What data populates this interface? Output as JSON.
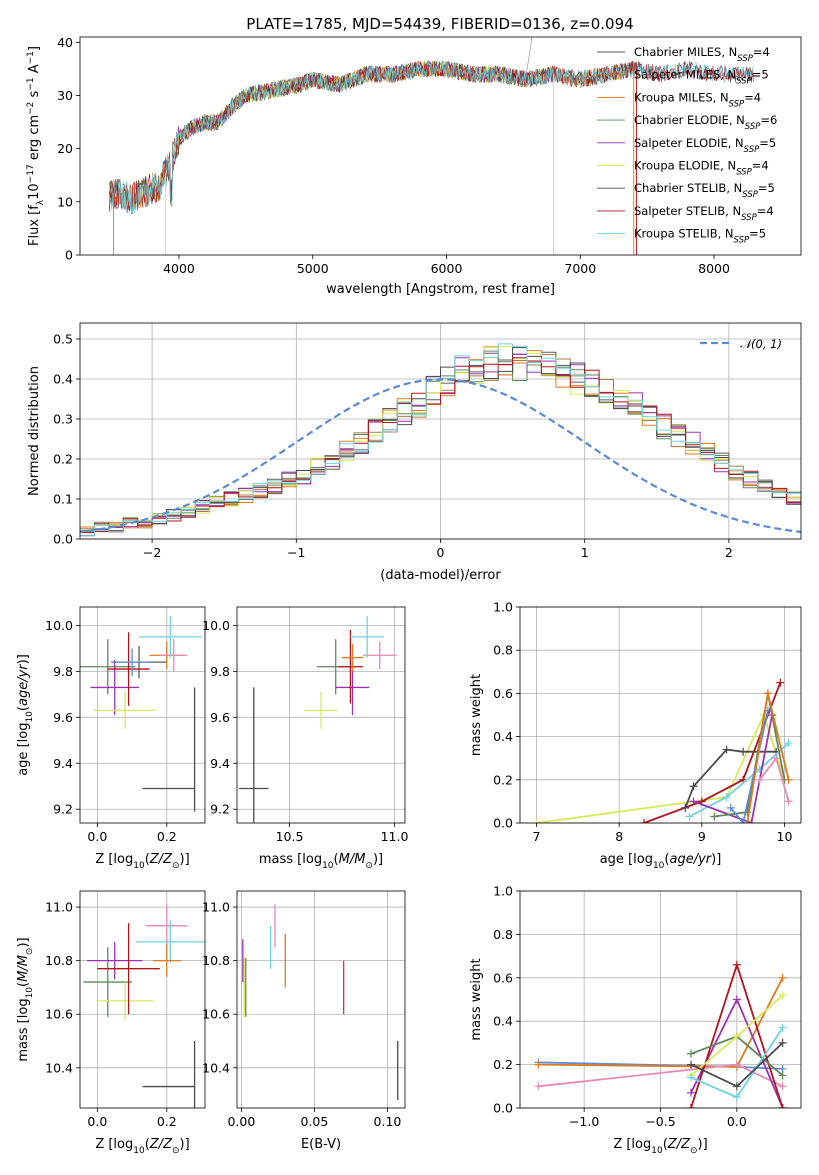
{
  "figure": {
    "title": "PLATE=1785, MJD=54439, FIBERID=0136, z=0.094"
  },
  "colors": {
    "Chabrier MILES": "#5b5b5b",
    "Salpeter MILES": "#a47c48",
    "Kroupa MILES": "#e07b1b",
    "Chabrier ELODIE": "#5e8a5a",
    "Salpeter ELODIE": "#9a32b5",
    "Kroupa ELODIE": "#d8e85a",
    "Chabrier STELIB": "#4a4a4a",
    "Salpeter STELIB": "#b0141d",
    "Kroupa STELIB": "#6fd3de",
    "normal": "#5b8bd6",
    "pink": "#e68ab5",
    "blue": "#5b8bd6",
    "red": "#d9363a",
    "orange": "#e07b1b"
  },
  "chart_data": [
    {
      "id": "spectrum",
      "type": "line",
      "title": "PLATE=1785, MJD=54439, FIBERID=0136, z=0.094",
      "xlabel": "wavelength [Angstrom, rest frame]",
      "ylabel": "Flux [f_λ10^-17 erg cm^-2 s^-1 A^-1]",
      "ylabel_parts": [
        "Flux [f",
        "λ",
        "10",
        "−17",
        " erg cm",
        "−2",
        " s",
        "−1",
        " A",
        "−1",
        "]"
      ],
      "xlim": [
        3260,
        8650
      ],
      "ylim": [
        0,
        41
      ],
      "xticks": [
        4000,
        5000,
        6000,
        7000,
        8000
      ],
      "yticks": [
        0,
        10,
        20,
        30,
        40
      ],
      "grid": false,
      "legend_position": "top-right",
      "series": [
        {
          "name": "Chabrier MILES, N_SSP=4",
          "label": "Chabrier MILES, N",
          "sub": "SSP",
          "suffix": "=4",
          "color_key": "Chabrier MILES"
        },
        {
          "name": "Salpeter MILES, N_SSP=5",
          "label": "Salpeter MILES, N",
          "sub": "SSP",
          "suffix": "=5",
          "color_key": "Salpeter MILES"
        },
        {
          "name": "Kroupa MILES, N_SSP=4",
          "label": "Kroupa MILES, N",
          "sub": "SSP",
          "suffix": "=4",
          "color_key": "Kroupa MILES"
        },
        {
          "name": "Chabrier ELODIE, N_SSP=6",
          "label": "Chabrier ELODIE, N",
          "sub": "SSP",
          "suffix": "=6",
          "color_key": "Chabrier ELODIE"
        },
        {
          "name": "Salpeter ELODIE, N_SSP=5",
          "label": "Salpeter ELODIE, N",
          "sub": "SSP",
          "suffix": "=5",
          "color_key": "Salpeter ELODIE"
        },
        {
          "name": "Kroupa ELODIE, N_SSP=4",
          "label": "Kroupa ELODIE, N",
          "sub": "SSP",
          "suffix": "=4",
          "color_key": "Kroupa ELODIE"
        },
        {
          "name": "Chabrier STELIB, N_SSP=5",
          "label": "Chabrier STELIB, N",
          "sub": "SSP",
          "suffix": "=5",
          "color_key": "Chabrier STELIB"
        },
        {
          "name": "Salpeter STELIB, N_SSP=4",
          "label": "Salpeter STELIB, N",
          "sub": "SSP",
          "suffix": "=4",
          "color_key": "Salpeter STELIB"
        },
        {
          "name": "Kroupa STELIB, N_SSP=5",
          "label": "Kroupa STELIB, N",
          "sub": "SSP",
          "suffix": "=5",
          "color_key": "Kroupa STELIB"
        }
      ],
      "continuum": [
        [
          3480,
          11
        ],
        [
          3550,
          11.5
        ],
        [
          3650,
          10.5
        ],
        [
          3750,
          12
        ],
        [
          3850,
          13
        ],
        [
          3950,
          18
        ],
        [
          4000,
          22
        ],
        [
          4100,
          24
        ],
        [
          4200,
          25
        ],
        [
          4300,
          25
        ],
        [
          4400,
          28
        ],
        [
          4500,
          30
        ],
        [
          4700,
          31
        ],
        [
          4900,
          32
        ],
        [
          5000,
          33
        ],
        [
          5200,
          32
        ],
        [
          5400,
          34
        ],
        [
          5600,
          34
        ],
        [
          5800,
          35
        ],
        [
          6000,
          35
        ],
        [
          6200,
          34
        ],
        [
          6400,
          34
        ],
        [
          6600,
          33
        ],
        [
          6800,
          34
        ],
        [
          7000,
          33
        ],
        [
          7200,
          34
        ],
        [
          7400,
          35
        ],
        [
          7600,
          34
        ],
        [
          7800,
          35
        ],
        [
          8000,
          34
        ],
        [
          8200,
          34
        ],
        [
          8300,
          34
        ]
      ],
      "ranges": {
        "Chabrier MILES": [
          3480,
          7400
        ],
        "Salpeter MILES": [
          3480,
          7400
        ],
        "Kroupa MILES": [
          3480,
          7400
        ],
        "Chabrier ELODIE": [
          3900,
          6800
        ],
        "Salpeter ELODIE": [
          3900,
          6800
        ],
        "Kroupa ELODIE": [
          3900,
          6800
        ],
        "Chabrier STELIB": [
          3480,
          8300
        ],
        "Salpeter STELIB": [
          3480,
          8300
        ],
        "Kroupa STELIB": [
          3480,
          8300
        ]
      },
      "drops": [
        {
          "x": 3900,
          "color_key": "Kroupa ELODIE"
        },
        {
          "x": 3510,
          "color_key": "Kroupa MILES"
        },
        {
          "x": 6800,
          "color_key": "Kroupa ELODIE"
        },
        {
          "x": 7400,
          "color_key": "Kroupa MILES"
        },
        {
          "x": 7420,
          "color_key": "Salpeter STELIB"
        }
      ]
    },
    {
      "id": "residual-hist",
      "type": "histogram",
      "xlabel": "(data-model)/error",
      "ylabel": "Normed distribution",
      "xlim": [
        -2.5,
        2.5
      ],
      "ylim": [
        0,
        0.54
      ],
      "xticks": [
        -2,
        -1,
        0,
        1,
        2
      ],
      "yticks": [
        0.0,
        0.1,
        0.2,
        0.3,
        0.4,
        0.5
      ],
      "grid": true,
      "legend_position": "top-right",
      "reference": {
        "name": "𝒩(0, 1)",
        "mean": 0,
        "sigma": 1,
        "color_key": "normal"
      },
      "bin_width": 0.1,
      "base_values": [
        0.02,
        0.02,
        0.03,
        0.03,
        0.04,
        0.04,
        0.05,
        0.06,
        0.07,
        0.08,
        0.09,
        0.1,
        0.11,
        0.12,
        0.13,
        0.15,
        0.16,
        0.18,
        0.19,
        0.22,
        0.24,
        0.27,
        0.3,
        0.32,
        0.34,
        0.37,
        0.39,
        0.42,
        0.43,
        0.44,
        0.45,
        0.44,
        0.44,
        0.43,
        0.42,
        0.4,
        0.39,
        0.37,
        0.35,
        0.33,
        0.31,
        0.28,
        0.26,
        0.24,
        0.22,
        0.19,
        0.17,
        0.15,
        0.13,
        0.11,
        0.1,
        0.09,
        0.08,
        0.07,
        0.06,
        0.05,
        0.045,
        0.04,
        0.035,
        0.03,
        0.03,
        0.025,
        0.02,
        0.02,
        0.02,
        0.02
      ],
      "start": -2.6,
      "series_keys": [
        "Chabrier MILES",
        "Salpeter MILES",
        "Kroupa MILES",
        "Chabrier ELODIE",
        "Salpeter ELODIE",
        "Kroupa ELODIE",
        "Chabrier STELIB",
        "Salpeter STELIB",
        "Kroupa STELIB"
      ]
    },
    {
      "id": "age-vs-z",
      "type": "scatter-errorbar",
      "xlabel": "Z [log10(Z/Z⊙)]",
      "ylabel": "age  [log10(age/yr)]",
      "xlim": [
        -0.05,
        0.31
      ],
      "ylim": [
        9.14,
        10.08
      ],
      "xticks": [
        0.0,
        0.2
      ],
      "yticks": [
        9.2,
        9.4,
        9.6,
        9.8,
        10.0
      ],
      "grid": true,
      "points": [
        {
          "x": 0.03,
          "y": 9.82,
          "xerr": 0.08,
          "yerr": 0.12,
          "color_key": "Chabrier ELODIE"
        },
        {
          "x": 0.05,
          "y": 9.73,
          "xerr": 0.07,
          "yerr": 0.12,
          "color_key": "Salpeter ELODIE"
        },
        {
          "x": 0.08,
          "y": 9.63,
          "xerr": 0.09,
          "yerr": 0.08,
          "color_key": "Kroupa ELODIE"
        },
        {
          "x": 0.09,
          "y": 9.81,
          "xerr": 0.06,
          "yerr": 0.16,
          "color_key": "Salpeter STELIB"
        },
        {
          "x": 0.12,
          "y": 9.84,
          "xerr": 0.08,
          "yerr": 0.07,
          "color_key": "Chabrier MILES"
        },
        {
          "x": 0.2,
          "y": 9.87,
          "xerr": 0.05,
          "yerr": 0.06,
          "color_key": "Kroupa MILES"
        },
        {
          "x": 0.22,
          "y": 9.87,
          "xerr": 0.04,
          "yerr": 0.07,
          "color_key": "pink"
        },
        {
          "x": 0.21,
          "y": 9.95,
          "xerr": 0.09,
          "yerr": 0.09,
          "color_key": "Kroupa STELIB"
        },
        {
          "x": 0.28,
          "y": 9.29,
          "xerr": 0.15,
          "yerr": 0.44,
          "color_key": "Chabrier STELIB",
          "one_sided": true
        },
        {
          "x": 0.1,
          "y": 9.84,
          "xerr": 0.05,
          "yerr": 0.06,
          "color_key": "blue"
        }
      ]
    },
    {
      "id": "age-vs-mass",
      "type": "scatter-errorbar",
      "xlabel": "mass [log10(M/M⊙)]",
      "ylabel": "",
      "xlim": [
        10.25,
        11.05
      ],
      "ylim": [
        9.14,
        10.08
      ],
      "xticks": [
        10.5,
        11.0
      ],
      "yticks": [
        9.2,
        9.4,
        9.6,
        9.8,
        10.0
      ],
      "grid": true,
      "points": [
        {
          "x": 10.72,
          "y": 9.82,
          "xerr": 0.09,
          "yerr": 0.12,
          "color_key": "Chabrier ELODIE"
        },
        {
          "x": 10.8,
          "y": 9.73,
          "xerr": 0.08,
          "yerr": 0.12,
          "color_key": "Salpeter ELODIE"
        },
        {
          "x": 10.65,
          "y": 9.63,
          "xerr": 0.08,
          "yerr": 0.08,
          "color_key": "Kroupa ELODIE"
        },
        {
          "x": 10.79,
          "y": 9.82,
          "xerr": 0.06,
          "yerr": 0.16,
          "color_key": "Salpeter STELIB"
        },
        {
          "x": 10.93,
          "y": 9.87,
          "xerr": 0.08,
          "yerr": 0.06,
          "color_key": "pink"
        },
        {
          "x": 10.87,
          "y": 9.95,
          "xerr": 0.08,
          "yerr": 0.09,
          "color_key": "Kroupa STELIB"
        },
        {
          "x": 10.8,
          "y": 9.86,
          "xerr": 0.05,
          "yerr": 0.06,
          "color_key": "Kroupa MILES"
        },
        {
          "x": 10.33,
          "y": 9.29,
          "xerr": 0.07,
          "yerr": 0.44,
          "color_key": "Chabrier STELIB"
        }
      ]
    },
    {
      "id": "weight-vs-age",
      "type": "line",
      "xlabel": "age  [log10(age/yr)]",
      "ylabel": "mass weight",
      "xlim": [
        6.8,
        10.2
      ],
      "ylim": [
        0.0,
        1.0
      ],
      "xticks": [
        7,
        8,
        9,
        10
      ],
      "yticks": [
        0.0,
        0.2,
        0.4,
        0.6,
        0.8,
        1.0
      ],
      "grid": true,
      "series": [
        {
          "color_key": "Kroupa ELODIE",
          "x": [
            7.0,
            9.3,
            9.75,
            10.0
          ],
          "y": [
            0.0,
            0.12,
            0.5,
            0.2
          ]
        },
        {
          "color_key": "Salpeter STELIB",
          "x": [
            8.3,
            9.0,
            9.5,
            9.95
          ],
          "y": [
            0.0,
            0.1,
            0.2,
            0.65
          ]
        },
        {
          "color_key": "Chabrier STELIB",
          "x": [
            8.8,
            8.9,
            9.3,
            9.5,
            9.9
          ],
          "y": [
            0.07,
            0.17,
            0.34,
            0.33,
            0.33
          ]
        },
        {
          "color_key": "Kroupa STELIB",
          "x": [
            8.85,
            9.3,
            9.7,
            10.05
          ],
          "y": [
            0.03,
            0.12,
            0.25,
            0.37
          ]
        },
        {
          "color_key": "Salpeter ELODIE",
          "x": [
            8.9,
            9.6,
            9.85
          ],
          "y": [
            0.1,
            0.0,
            0.5
          ]
        },
        {
          "color_key": "Chabrier ELODIE",
          "x": [
            9.15,
            9.55,
            9.8,
            10.0
          ],
          "y": [
            0.03,
            0.05,
            0.6,
            0.2
          ]
        },
        {
          "color_key": "blue",
          "x": [
            9.35,
            9.5,
            9.8
          ],
          "y": [
            0.07,
            0.0,
            0.52
          ]
        },
        {
          "color_key": "orange",
          "x": [
            9.55,
            9.8,
            10.05
          ],
          "y": [
            0.0,
            0.6,
            0.2
          ]
        },
        {
          "color_key": "pink",
          "x": [
            9.7,
            9.9,
            10.05
          ],
          "y": [
            0.2,
            0.3,
            0.1
          ]
        }
      ]
    },
    {
      "id": "mass-vs-z",
      "type": "scatter-errorbar",
      "xlabel": "Z [log10(Z/Z⊙)]",
      "ylabel": "mass [log10(M/M⊙)]",
      "xlim": [
        -0.05,
        0.31
      ],
      "ylim": [
        10.25,
        11.06
      ],
      "xticks": [
        0.0,
        0.2
      ],
      "yticks": [
        10.4,
        10.6,
        10.8,
        11.0
      ],
      "grid": true,
      "points": [
        {
          "x": 0.03,
          "y": 10.72,
          "xerr": 0.07,
          "yerr": 0.13,
          "color_key": "Chabrier ELODIE"
        },
        {
          "x": 0.05,
          "y": 10.8,
          "xerr": 0.08,
          "yerr": 0.07,
          "color_key": "Salpeter ELODIE"
        },
        {
          "x": 0.08,
          "y": 10.65,
          "xerr": 0.08,
          "yerr": 0.07,
          "color_key": "Kroupa ELODIE"
        },
        {
          "x": 0.09,
          "y": 10.77,
          "xerr": 0.09,
          "yerr": 0.17,
          "color_key": "Salpeter STELIB"
        },
        {
          "x": 0.2,
          "y": 10.93,
          "xerr": 0.06,
          "yerr": 0.08,
          "color_key": "pink"
        },
        {
          "x": 0.21,
          "y": 10.87,
          "xerr": 0.1,
          "yerr": 0.08,
          "color_key": "Kroupa STELIB"
        },
        {
          "x": 0.2,
          "y": 10.8,
          "xerr": 0.04,
          "yerr": 0.06,
          "color_key": "Kroupa MILES"
        },
        {
          "x": 0.28,
          "y": 10.33,
          "xerr": 0.15,
          "yerr": 0.17,
          "color_key": "Chabrier STELIB",
          "one_sided": true
        }
      ]
    },
    {
      "id": "mass-vs-ebv",
      "type": "scatter-errorbar",
      "xlabel": "E(B-V)",
      "ylabel": "",
      "xlim": [
        -0.003,
        0.112
      ],
      "ylim": [
        10.25,
        11.06
      ],
      "xticks": [
        0.0,
        0.05,
        0.1
      ],
      "yticks": [
        10.4,
        10.6,
        10.8,
        11.0
      ],
      "grid": true,
      "points": [
        {
          "x": 0.001,
          "y": 10.8,
          "xerr": 0,
          "yerr": 0.08,
          "color_key": "Salpeter ELODIE"
        },
        {
          "x": 0.002,
          "y": 10.7,
          "xerr": 0,
          "yerr": 0.11,
          "color_key": "Kroupa ELODIE"
        },
        {
          "x": 0.003,
          "y": 10.7,
          "xerr": 0,
          "yerr": 0.11,
          "color_key": "Chabrier ELODIE"
        },
        {
          "x": 0.02,
          "y": 10.85,
          "xerr": 0,
          "yerr": 0.08,
          "color_key": "Kroupa STELIB"
        },
        {
          "x": 0.023,
          "y": 10.93,
          "xerr": 0,
          "yerr": 0.08,
          "color_key": "pink"
        },
        {
          "x": 0.03,
          "y": 10.8,
          "xerr": 0,
          "yerr": 0.1,
          "color_key": "Kroupa MILES"
        },
        {
          "x": 0.07,
          "y": 10.7,
          "xerr": 0,
          "yerr": 0.1,
          "color_key": "red"
        },
        {
          "x": 0.107,
          "y": 10.39,
          "xerr": 0,
          "yerr": 0.11,
          "color_key": "Chabrier STELIB"
        }
      ]
    },
    {
      "id": "weight-vs-z",
      "type": "line",
      "xlabel": "Z [log10(Z/Z⊙)]",
      "ylabel": "mass weight",
      "xlim": [
        -1.42,
        0.42
      ],
      "ylim": [
        0.0,
        1.0
      ],
      "xticks": [
        -1.0,
        -0.5,
        0.0
      ],
      "yticks": [
        0.0,
        0.2,
        0.4,
        0.6,
        0.8,
        1.0
      ],
      "grid": true,
      "series": [
        {
          "color_key": "blue",
          "x": [
            -1.3,
            0.0,
            0.3
          ],
          "y": [
            0.21,
            0.19,
            0.18
          ]
        },
        {
          "color_key": "orange",
          "x": [
            -1.3,
            0.0,
            0.3
          ],
          "y": [
            0.2,
            0.19,
            0.6
          ]
        },
        {
          "color_key": "pink",
          "x": [
            -1.3,
            0.0,
            0.3
          ],
          "y": [
            0.1,
            0.2,
            0.1
          ]
        },
        {
          "color_key": "Salpeter ELODIE",
          "x": [
            -0.3,
            0.0,
            0.3
          ],
          "y": [
            0.07,
            0.5,
            0.0
          ]
        },
        {
          "color_key": "Salpeter STELIB",
          "x": [
            -0.3,
            0.0,
            0.3
          ],
          "y": [
            0.0,
            0.66,
            0.0
          ]
        },
        {
          "color_key": "Chabrier ELODIE",
          "x": [
            -0.3,
            0.0,
            0.3
          ],
          "y": [
            0.25,
            0.33,
            0.15
          ]
        },
        {
          "color_key": "Kroupa ELODIE",
          "x": [
            -0.3,
            0.0,
            0.3
          ],
          "y": [
            0.15,
            0.33,
            0.52
          ]
        },
        {
          "color_key": "Kroupa STELIB",
          "x": [
            -0.3,
            0.0,
            0.3
          ],
          "y": [
            0.14,
            0.05,
            0.37
          ]
        },
        {
          "color_key": "Chabrier STELIB",
          "x": [
            -0.3,
            0.0,
            0.3
          ],
          "y": [
            0.2,
            0.1,
            0.3
          ]
        }
      ]
    }
  ]
}
